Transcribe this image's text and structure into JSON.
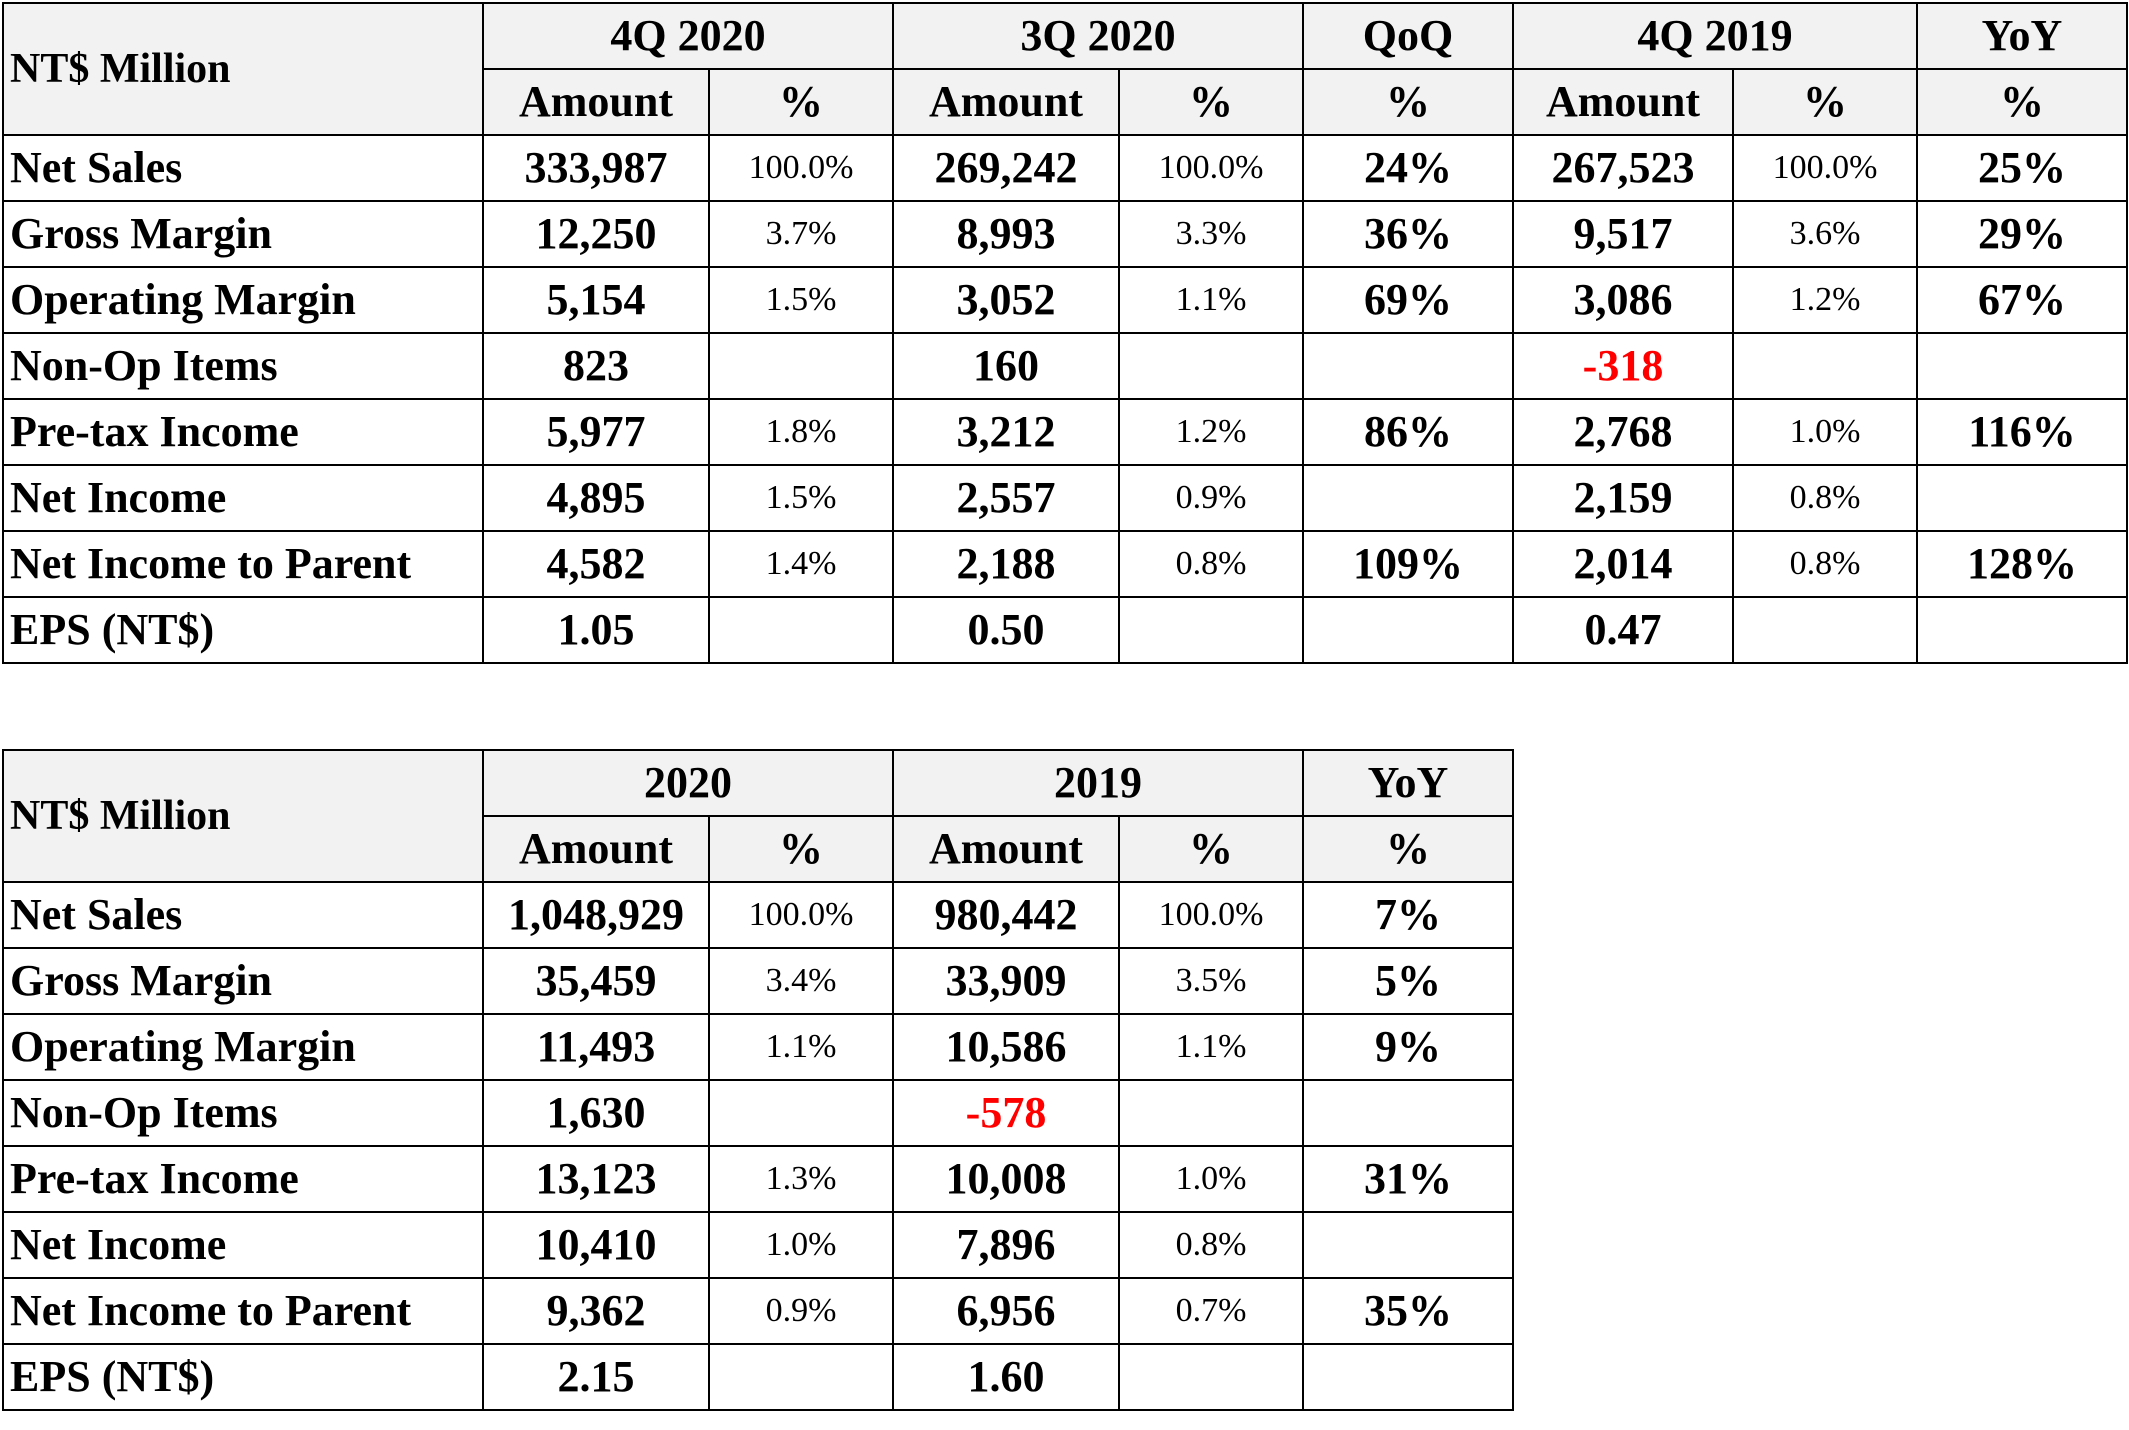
{
  "quarterly": {
    "unit_label": "NT$ Million",
    "groups": [
      "4Q 2020",
      "3Q 2020",
      "QoQ",
      "4Q 2019",
      "YoY"
    ],
    "subheaders": [
      "Amount",
      "%",
      "Amount",
      "%",
      "%",
      "Amount",
      "%",
      "%"
    ],
    "rows": [
      {
        "label": "Net Sales",
        "cells": [
          "333,987",
          "100.0%",
          "269,242",
          "100.0%",
          "24%",
          "267,523",
          "100.0%",
          "25%"
        ]
      },
      {
        "label": "Gross Margin",
        "cells": [
          "12,250",
          "3.7%",
          "8,993",
          "3.3%",
          "36%",
          "9,517",
          "3.6%",
          "29%"
        ]
      },
      {
        "label": "Operating Margin",
        "cells": [
          "5,154",
          "1.5%",
          "3,052",
          "1.1%",
          "69%",
          "3,086",
          "1.2%",
          "67%"
        ]
      },
      {
        "label": "Non-Op Items",
        "cells": [
          "823",
          "",
          "160",
          "",
          "",
          "-318",
          "",
          ""
        ]
      },
      {
        "label": "Pre-tax Income",
        "cells": [
          "5,977",
          "1.8%",
          "3,212",
          "1.2%",
          "86%",
          "2,768",
          "1.0%",
          "116%"
        ]
      },
      {
        "label": "Net Income",
        "cells": [
          "4,895",
          "1.5%",
          "2,557",
          "0.9%",
          "",
          "2,159",
          "0.8%",
          ""
        ]
      },
      {
        "label": "Net Income to Parent",
        "cells": [
          "4,582",
          "1.4%",
          "2,188",
          "0.8%",
          "109%",
          "2,014",
          "0.8%",
          "128%"
        ]
      },
      {
        "label": "EPS (NT$)",
        "cells": [
          "1.05",
          "",
          "0.50",
          "",
          "",
          "0.47",
          "",
          ""
        ]
      }
    ]
  },
  "annual": {
    "unit_label": "NT$ Million",
    "groups": [
      "2020",
      "2019",
      "YoY"
    ],
    "subheaders": [
      "Amount",
      "%",
      "Amount",
      "%",
      "%"
    ],
    "rows": [
      {
        "label": "Net Sales",
        "cells": [
          "1,048,929",
          "100.0%",
          "980,442",
          "100.0%",
          "7%"
        ]
      },
      {
        "label": "Gross Margin",
        "cells": [
          "35,459",
          "3.4%",
          "33,909",
          "3.5%",
          "5%"
        ]
      },
      {
        "label": "Operating Margin",
        "cells": [
          "11,493",
          "1.1%",
          "10,586",
          "1.1%",
          "9%"
        ]
      },
      {
        "label": "Non-Op Items",
        "cells": [
          "1,630",
          "",
          "-578",
          "",
          ""
        ]
      },
      {
        "label": "Pre-tax Income",
        "cells": [
          "13,123",
          "1.3%",
          "10,008",
          "1.0%",
          "31%"
        ]
      },
      {
        "label": "Net Income",
        "cells": [
          "10,410",
          "1.0%",
          "7,896",
          "0.8%",
          ""
        ]
      },
      {
        "label": "Net Income to Parent",
        "cells": [
          "9,362",
          "0.9%",
          "6,956",
          "0.7%",
          "35%"
        ]
      },
      {
        "label": "EPS (NT$)",
        "cells": [
          "2.15",
          "",
          "1.60",
          "",
          ""
        ]
      }
    ]
  },
  "colors": {
    "header_background": "#f2f2f2",
    "border": "#000000",
    "negative_value": "#ff0000"
  }
}
